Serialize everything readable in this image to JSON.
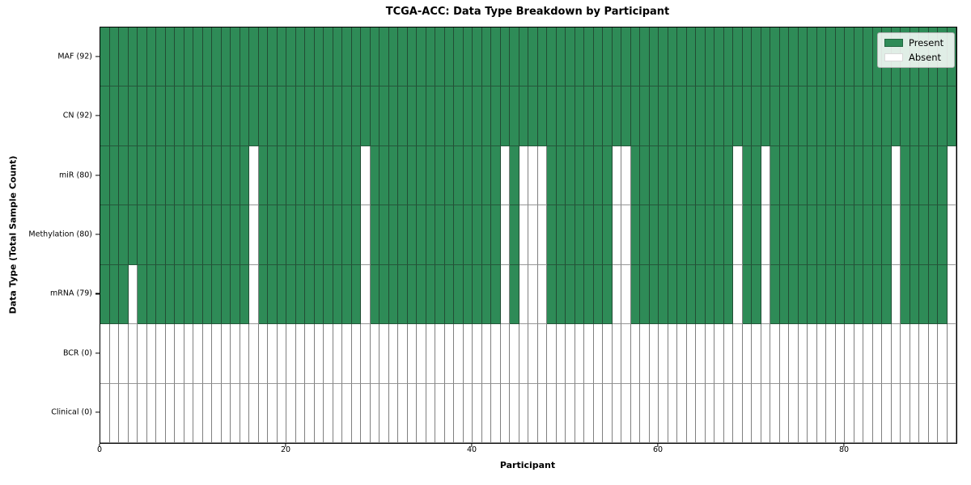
{
  "chart_data": {
    "type": "heatmap",
    "title": "TCGA-ACC: Data Type Breakdown by Participant",
    "xlabel": "Participant",
    "ylabel": "Data Type (Total Sample Count)",
    "n_participants": 92,
    "x_ticks": [
      0,
      20,
      40,
      60,
      80
    ],
    "x_range": [
      0,
      92
    ],
    "grid": true,
    "rows": [
      {
        "data_type": "MAF",
        "label": "MAF (92)",
        "present_count": 92,
        "absent_participants": []
      },
      {
        "data_type": "CN",
        "label": "CN (92)",
        "present_count": 92,
        "absent_participants": []
      },
      {
        "data_type": "miR",
        "label": "miR (80)",
        "present_count": 80,
        "absent_participants": [
          16,
          28,
          43,
          45,
          46,
          47,
          55,
          56,
          68,
          71,
          85,
          91
        ]
      },
      {
        "data_type": "Methylation",
        "label": "Methylation (80)",
        "present_count": 80,
        "absent_participants": [
          16,
          28,
          43,
          45,
          46,
          47,
          55,
          56,
          68,
          71,
          85,
          91
        ]
      },
      {
        "data_type": "mRNA",
        "label": "mRNA (79)",
        "present_count": 79,
        "absent_participants": [
          3,
          16,
          28,
          43,
          45,
          46,
          47,
          55,
          56,
          68,
          71,
          85,
          91
        ]
      },
      {
        "data_type": "BCR",
        "label": "BCR (0)",
        "present_count": 0,
        "absent_all": true
      },
      {
        "data_type": "Clinical",
        "label": "Clinical (0)",
        "present_count": 0,
        "absent_all": true
      }
    ],
    "legend": {
      "position": "upper right",
      "entries": [
        {
          "label": "Present",
          "color": "#2e8b57"
        },
        {
          "label": "Absent",
          "color": "#ffffff"
        }
      ]
    },
    "colors": {
      "present": "#2e8b57",
      "absent": "#ffffff",
      "cell_border": "rgba(25,25,25,0.5)",
      "axis": "#000000",
      "background": "#ffffff"
    }
  }
}
